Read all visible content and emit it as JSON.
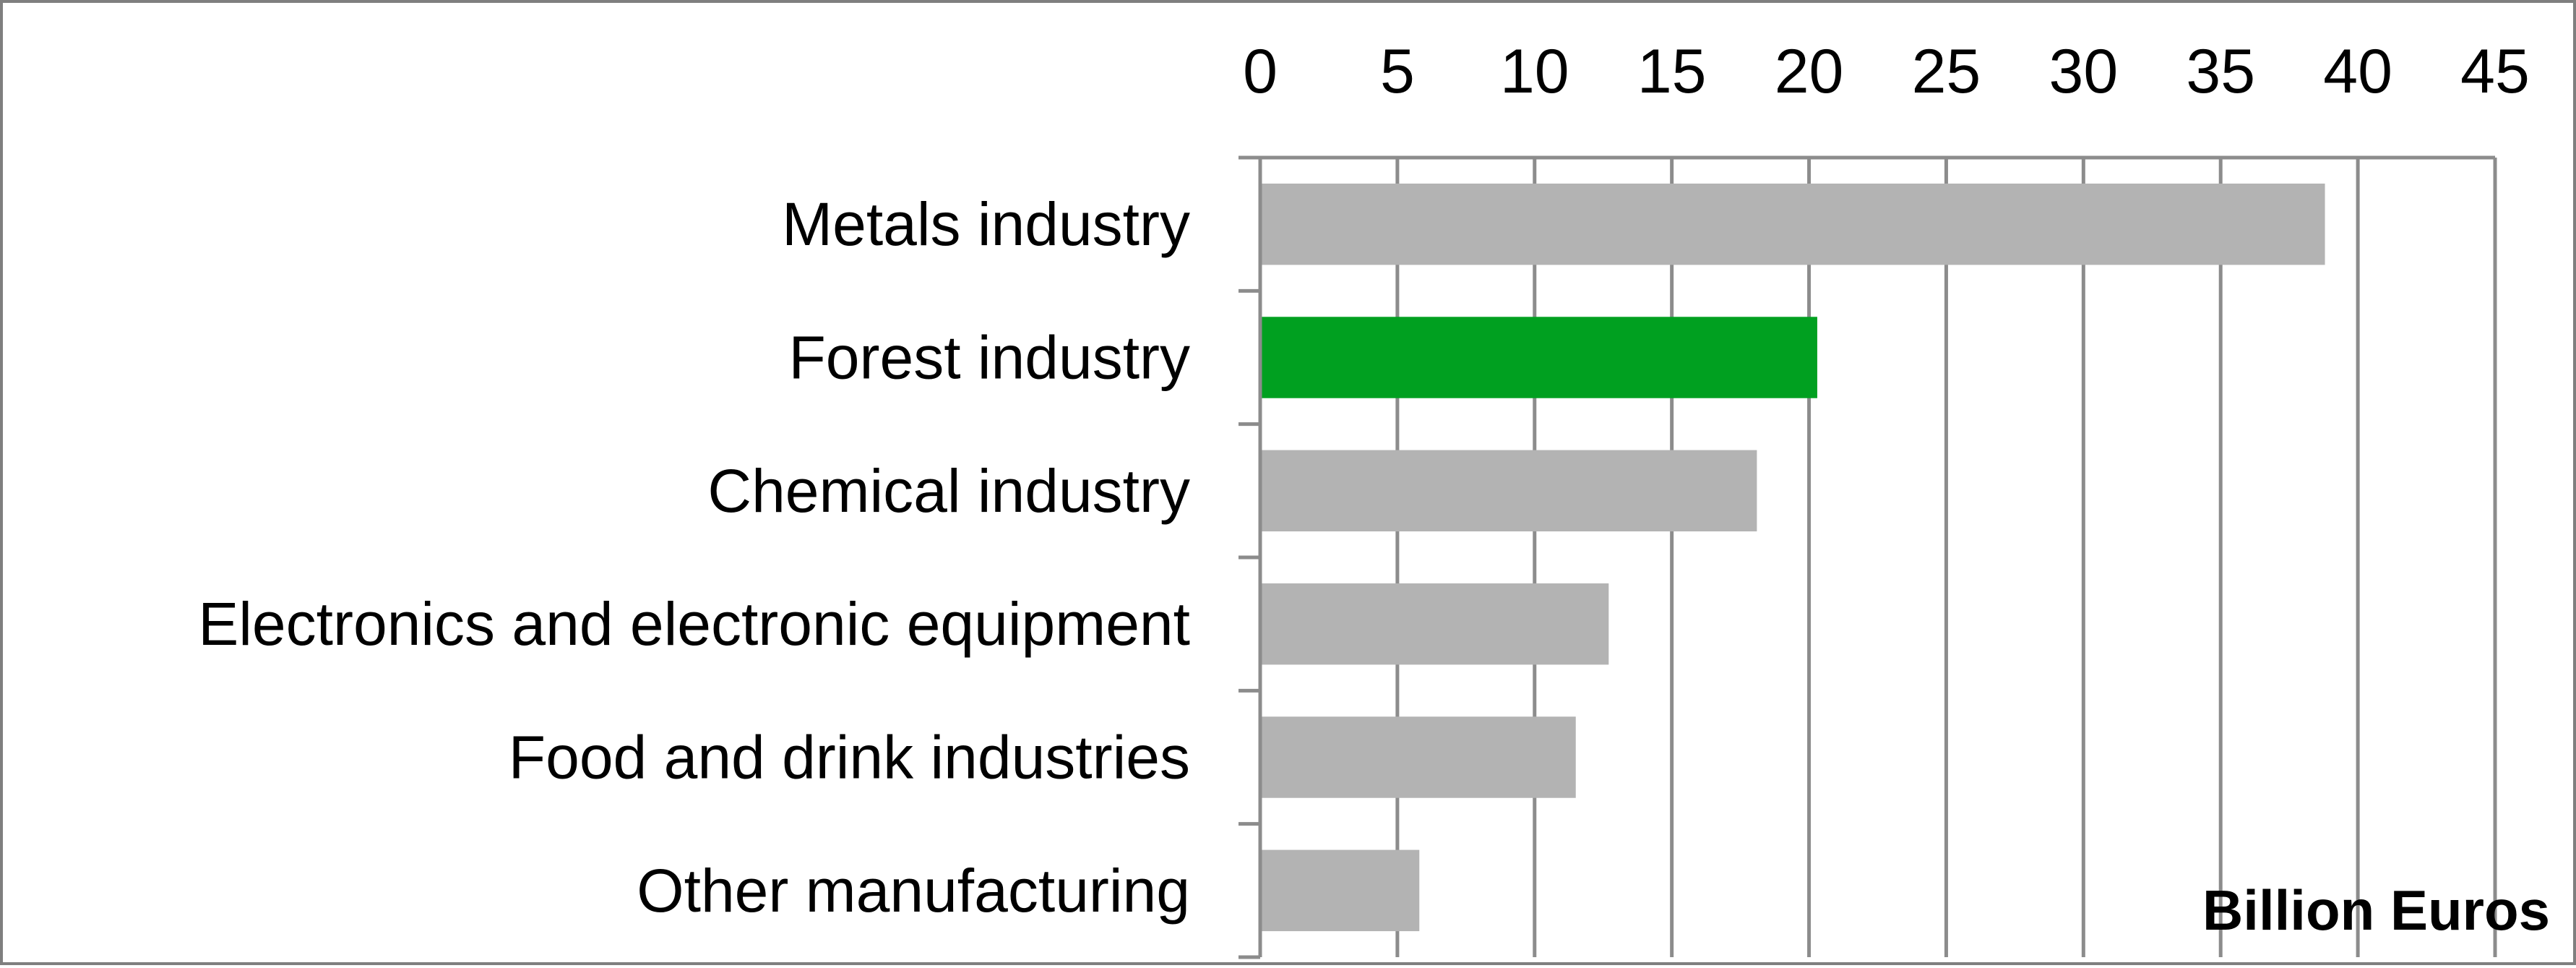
{
  "chart_data": {
    "type": "bar",
    "orientation": "horizontal",
    "categories": [
      "Metals industry",
      "Forest industry",
      "Chemical industry",
      "Electronics and electronic equipment",
      "Food and drink industries",
      "Other manufacturing"
    ],
    "values": [
      38.8,
      20.3,
      18.1,
      12.7,
      11.5,
      5.8
    ],
    "bar_colors": [
      "#b3b3b3",
      "#00a020",
      "#b3b3b3",
      "#b3b3b3",
      "#b3b3b3",
      "#b3b3b3"
    ],
    "highlight_category": "Forest industry",
    "xlim": [
      0,
      45
    ],
    "x_ticks": [
      0,
      5,
      10,
      15,
      20,
      25,
      30,
      35,
      40,
      45
    ],
    "x_axis_position": "top",
    "grid": "vertical",
    "unit_label": "Billion Euros",
    "title": "",
    "xlabel": "",
    "ylabel": ""
  }
}
